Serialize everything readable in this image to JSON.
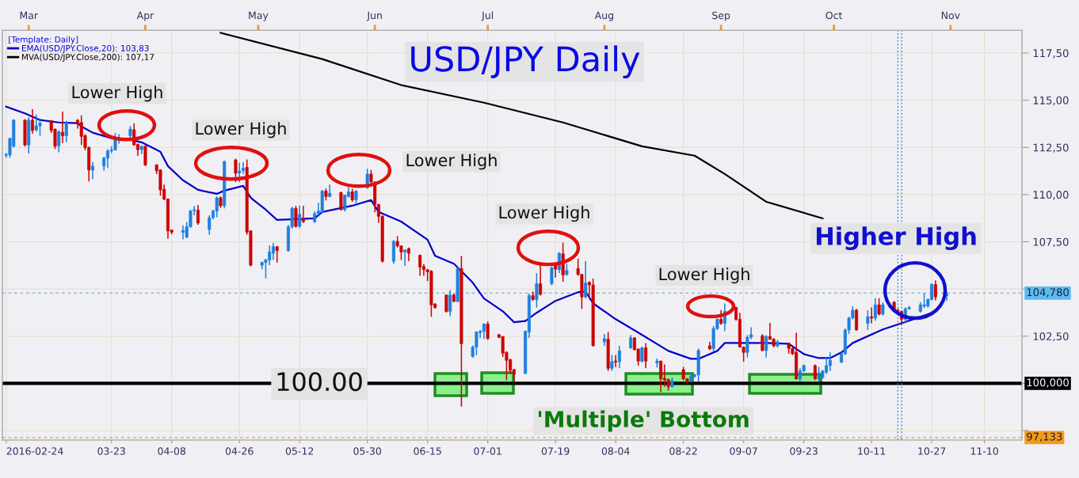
{
  "chart_data": {
    "type": "candlestick",
    "title": "USD/JPY Daily",
    "legend_title": "[Template: Daily]",
    "legend": "top left",
    "grid": true,
    "x": [
      "2016-02-24",
      "2016-02-25",
      "2016-02-26",
      "2016-02-29",
      "2016-03-01",
      "2016-03-02",
      "2016-03-03",
      "2016-03-04",
      "2016-03-07",
      "2016-03-08",
      "2016-03-09",
      "2016-03-10",
      "2016-03-11",
      "2016-03-14",
      "2016-03-15",
      "2016-03-16",
      "2016-03-17",
      "2016-03-18",
      "2016-03-21",
      "2016-03-22",
      "2016-03-23",
      "2016-03-24",
      "2016-03-25",
      "2016-03-28",
      "2016-03-29",
      "2016-03-30",
      "2016-03-31",
      "2016-04-01",
      "2016-04-04",
      "2016-04-05",
      "2016-04-06",
      "2016-04-07",
      "2016-04-08",
      "2016-04-11",
      "2016-04-12",
      "2016-04-13",
      "2016-04-14",
      "2016-04-15",
      "2016-04-18",
      "2016-04-19",
      "2016-04-20",
      "2016-04-21",
      "2016-04-22",
      "2016-04-25",
      "2016-04-26",
      "2016-04-27",
      "2016-04-28",
      "2016-04-29",
      "2016-05-02",
      "2016-05-03",
      "2016-05-04",
      "2016-05-05",
      "2016-05-06",
      "2016-05-09",
      "2016-05-10",
      "2016-05-11",
      "2016-05-12",
      "2016-05-13",
      "2016-05-16",
      "2016-05-17",
      "2016-05-18",
      "2016-05-19",
      "2016-05-20",
      "2016-05-23",
      "2016-05-24",
      "2016-05-25",
      "2016-05-26",
      "2016-05-27",
      "2016-05-30",
      "2016-05-31",
      "2016-06-01",
      "2016-06-02",
      "2016-06-03",
      "2016-06-06",
      "2016-06-07",
      "2016-06-08",
      "2016-06-09",
      "2016-06-10",
      "2016-06-13",
      "2016-06-14",
      "2016-06-15",
      "2016-06-16",
      "2016-06-17",
      "2016-06-20",
      "2016-06-21",
      "2016-06-22",
      "2016-06-23",
      "2016-06-24",
      "2016-06-27",
      "2016-06-28",
      "2016-06-29",
      "2016-06-30",
      "2016-07-01",
      "2016-07-04",
      "2016-07-05",
      "2016-07-06",
      "2016-07-07",
      "2016-07-08",
      "2016-07-11",
      "2016-07-12",
      "2016-07-13",
      "2016-07-14",
      "2016-07-15",
      "2016-07-18",
      "2016-07-19",
      "2016-07-20",
      "2016-07-21",
      "2016-07-22",
      "2016-07-25",
      "2016-07-26",
      "2016-07-27",
      "2016-07-28",
      "2016-07-29",
      "2016-08-01",
      "2016-08-02",
      "2016-08-03",
      "2016-08-04",
      "2016-08-05",
      "2016-08-08",
      "2016-08-09",
      "2016-08-10",
      "2016-08-11",
      "2016-08-12",
      "2016-08-15",
      "2016-08-16",
      "2016-08-17",
      "2016-08-18",
      "2016-08-19",
      "2016-08-22",
      "2016-08-23",
      "2016-08-24",
      "2016-08-25",
      "2016-08-26",
      "2016-08-29",
      "2016-08-30",
      "2016-08-31",
      "2016-09-01",
      "2016-09-02",
      "2016-09-05",
      "2016-09-06",
      "2016-09-07",
      "2016-09-08",
      "2016-09-09",
      "2016-09-12",
      "2016-09-13",
      "2016-09-14",
      "2016-09-15",
      "2016-09-16",
      "2016-09-19",
      "2016-09-20",
      "2016-09-21",
      "2016-09-22",
      "2016-09-23",
      "2016-09-26",
      "2016-09-27",
      "2016-09-28",
      "2016-09-29",
      "2016-09-30",
      "2016-10-03",
      "2016-10-04",
      "2016-10-05",
      "2016-10-06",
      "2016-10-07",
      "2016-10-10",
      "2016-10-11",
      "2016-10-12",
      "2016-10-13",
      "2016-10-14",
      "2016-10-17",
      "2016-10-18",
      "2016-10-19",
      "2016-10-20",
      "2016-10-21",
      "2016-10-24",
      "2016-10-25",
      "2016-10-26",
      "2016-10-27",
      "2016-10-28",
      "2016-10-31"
    ],
    "series": [
      {
        "ohlc": [
          [
            112.08,
            112.2,
            111.95,
            112.13
          ],
          [
            112.1,
            113.0,
            111.95,
            112.98
          ],
          [
            112.56,
            114.0,
            112.5,
            113.94
          ],
          [
            113.94,
            114.0,
            112.55,
            112.63
          ],
          [
            112.63,
            114.1,
            112.18,
            113.96
          ],
          [
            113.94,
            114.52,
            113.22,
            113.4
          ],
          [
            113.43,
            114.24,
            113.33,
            113.64
          ],
          [
            113.64,
            114.03,
            113.12,
            113.78
          ],
          [
            113.92,
            113.95,
            113.26,
            113.4
          ],
          [
            113.47,
            113.5,
            112.42,
            112.56
          ],
          [
            112.59,
            113.4,
            112.24,
            113.33
          ],
          [
            113.3,
            114.4,
            112.73,
            113.12
          ],
          [
            113.12,
            113.92,
            112.77,
            113.82
          ],
          [
            113.94,
            114.0,
            113.5,
            113.76
          ],
          [
            113.82,
            114.2,
            112.63,
            113.08
          ],
          [
            113.12,
            113.2,
            112.35,
            112.49
          ],
          [
            112.49,
            112.55,
            110.7,
            111.3
          ],
          [
            111.3,
            111.72,
            110.81,
            111.51
          ],
          [
            111.51,
            112.0,
            111.26,
            111.93
          ],
          [
            111.93,
            112.42,
            111.4,
            112.31
          ],
          [
            112.31,
            112.56,
            112.2,
            112.36
          ],
          [
            112.36,
            113.26,
            112.33,
            112.93
          ],
          [
            112.9,
            113.2,
            112.7,
            112.93
          ],
          [
            113.12,
            113.64,
            112.98,
            113.47
          ],
          [
            113.43,
            113.78,
            112.6,
            112.63
          ],
          [
            112.66,
            112.7,
            112.05,
            112.38
          ],
          [
            112.38,
            112.6,
            112.14,
            112.55
          ],
          [
            112.56,
            112.6,
            111.5,
            111.58
          ],
          [
            111.58,
            111.6,
            111.09,
            111.26
          ],
          [
            111.3,
            111.35,
            109.94,
            110.25
          ],
          [
            110.28,
            110.53,
            109.7,
            109.76
          ],
          [
            109.76,
            109.8,
            107.66,
            108.08
          ],
          [
            108.12,
            108.15,
            107.9,
            108.01
          ],
          [
            108.0,
            108.37,
            107.63,
            108.1
          ],
          [
            107.74,
            108.55,
            107.7,
            108.3
          ],
          [
            108.3,
            109.2,
            108.25,
            109.13
          ],
          [
            109.15,
            109.4,
            108.9,
            109.2
          ],
          [
            109.17,
            109.45,
            108.4,
            108.5
          ],
          [
            108.15,
            108.9,
            107.87,
            108.78
          ],
          [
            108.78,
            109.2,
            108.7,
            109.13
          ],
          [
            109.13,
            109.9,
            108.8,
            109.83
          ],
          [
            109.83,
            109.9,
            109.3,
            109.41
          ],
          [
            109.41,
            111.8,
            109.27,
            111.75
          ],
          [
            111.83,
            111.9,
            110.67,
            111.13
          ],
          [
            111.15,
            111.68,
            110.67,
            111.25
          ],
          [
            111.27,
            111.72,
            111.1,
            111.4
          ],
          [
            111.44,
            111.86,
            107.87,
            108.01
          ],
          [
            108.08,
            108.1,
            106.2,
            106.26
          ],
          [
            106.26,
            106.45,
            106.05,
            106.4
          ],
          [
            106.4,
            106.6,
            105.56,
            106.54
          ],
          [
            106.54,
            107.31,
            106.26,
            106.96
          ],
          [
            106.89,
            107.45,
            106.54,
            107.24
          ],
          [
            107.24,
            107.28,
            106.4,
            107.03
          ],
          [
            107.03,
            108.4,
            106.98,
            108.29
          ],
          [
            108.29,
            109.35,
            108.2,
            109.27
          ],
          [
            109.27,
            109.4,
            108.25,
            108.32
          ],
          [
            108.32,
            109.41,
            108.22,
            108.96
          ],
          [
            108.71,
            109.41,
            108.5,
            108.57
          ],
          [
            108.57,
            109.1,
            108.5,
            108.99
          ],
          [
            108.99,
            109.58,
            108.9,
            109.13
          ],
          [
            109.06,
            110.25,
            109.0,
            110.18
          ],
          [
            110.18,
            110.32,
            109.69,
            109.9
          ],
          [
            109.9,
            110.53,
            109.86,
            110.07
          ],
          [
            110.11,
            110.15,
            109.15,
            109.2
          ],
          [
            109.2,
            110.0,
            109.1,
            109.97
          ],
          [
            109.9,
            110.39,
            109.85,
            110.14
          ],
          [
            110.14,
            110.32,
            109.62,
            109.72
          ],
          [
            109.72,
            110.25,
            109.48,
            110.18
          ],
          [
            110.36,
            111.37,
            110.32,
            111.09
          ],
          [
            111.09,
            111.3,
            110.46,
            110.67
          ],
          [
            110.67,
            110.7,
            109.06,
            109.48
          ],
          [
            109.48,
            109.5,
            108.5,
            108.85
          ],
          [
            108.85,
            108.9,
            106.4,
            106.47
          ],
          [
            106.47,
            107.6,
            106.33,
            107.52
          ],
          [
            107.52,
            107.8,
            107.2,
            107.28
          ],
          [
            107.28,
            107.3,
            106.54,
            106.96
          ],
          [
            106.96,
            107.1,
            106.22,
            107.06
          ],
          [
            107.14,
            107.2,
            106.47,
            106.89
          ],
          [
            106.78,
            106.82,
            105.7,
            106.16
          ],
          [
            106.19,
            106.33,
            105.7,
            106.02
          ],
          [
            106.02,
            106.05,
            105.42,
            105.91
          ],
          [
            105.94,
            106.0,
            103.53,
            104.16
          ],
          [
            104.2,
            104.25,
            103.95,
            104.02
          ],
          [
            104.68,
            104.7,
            103.75,
            103.81
          ],
          [
            103.81,
            104.93,
            103.56,
            104.68
          ],
          [
            104.68,
            104.75,
            104.3,
            104.34
          ],
          [
            104.34,
            106.15,
            104.3,
            106.08
          ],
          [
            106.08,
            106.75,
            98.77,
            102.1
          ],
          [
            101.43,
            102.0,
            101.36,
            101.92
          ],
          [
            101.92,
            102.76,
            101.5,
            102.72
          ],
          [
            102.69,
            102.83,
            102.4,
            102.76
          ],
          [
            102.76,
            103.18,
            102.34,
            103.14
          ],
          [
            103.14,
            103.28,
            102.3,
            102.38
          ],
          [
            102.58,
            102.62,
            102.4,
            102.44
          ],
          [
            102.48,
            102.5,
            101.4,
            101.6
          ],
          [
            101.64,
            101.7,
            100.17,
            101.22
          ],
          [
            101.26,
            101.3,
            100.5,
            100.7
          ],
          [
            100.73,
            100.76,
            100.1,
            100.48
          ],
          [
            100.52,
            102.8,
            100.5,
            102.76
          ],
          [
            102.72,
            104.76,
            102.41,
            104.65
          ],
          [
            104.65,
            104.86,
            104.37,
            104.44
          ],
          [
            104.44,
            105.84,
            104.02,
            105.28
          ],
          [
            105.28,
            106.26,
            104.65,
            104.72
          ],
          [
            105.28,
            106.2,
            105.2,
            106.12
          ],
          [
            106.26,
            106.3,
            105.6,
            106.05
          ],
          [
            106.02,
            106.96,
            105.84,
            106.89
          ],
          [
            106.86,
            107.45,
            105.38,
            105.74
          ],
          [
            105.77,
            106.33,
            105.7,
            105.98
          ],
          [
            106.08,
            106.61,
            105.7,
            105.77
          ],
          [
            105.77,
            105.8,
            103.95,
            104.58
          ],
          [
            104.58,
            106.47,
            104.5,
            105.32
          ],
          [
            105.35,
            105.4,
            104.44,
            105.21
          ],
          [
            105.21,
            105.56,
            101.95,
            101.99
          ],
          [
            102.2,
            102.62,
            101.99,
            102.37
          ],
          [
            102.34,
            102.72,
            100.66,
            100.8
          ],
          [
            100.8,
            101.5,
            100.66,
            101.15
          ],
          [
            101.18,
            101.5,
            100.87,
            101.12
          ],
          [
            101.15,
            101.99,
            100.8,
            101.71
          ],
          [
            101.88,
            102.55,
            101.83,
            102.41
          ],
          [
            102.41,
            102.45,
            101.75,
            101.78
          ],
          [
            101.82,
            101.85,
            100.94,
            101.18
          ],
          [
            101.18,
            101.95,
            101.1,
            101.88
          ],
          [
            101.88,
            102.13,
            100.8,
            101.18
          ],
          [
            101.08,
            101.32,
            100.84,
            101.18
          ],
          [
            101.18,
            101.2,
            99.54,
            100.24
          ],
          [
            100.27,
            101.0,
            99.82,
            100.17
          ],
          [
            100.2,
            100.25,
            99.61,
            99.82
          ],
          [
            99.82,
            100.31,
            99.8,
            100.14
          ],
          [
            100.73,
            100.87,
            100.17,
            100.24
          ],
          [
            100.24,
            100.28,
            100.0,
            100.1
          ],
          [
            100.1,
            100.52,
            100.05,
            100.38
          ],
          [
            100.38,
            100.5,
            100.3,
            100.45
          ],
          [
            100.45,
            101.85,
            100.1,
            101.74
          ],
          [
            101.99,
            102.2,
            101.78,
            101.82
          ],
          [
            101.85,
            103.04,
            101.7,
            102.9
          ],
          [
            102.9,
            103.45,
            102.83,
            103.39
          ],
          [
            103.39,
            103.88,
            103.1,
            103.18
          ],
          [
            103.18,
            104.23,
            102.76,
            103.81
          ],
          [
            104.02,
            104.05,
            103.32,
            103.39
          ],
          [
            103.39,
            103.74,
            101.9,
            101.92
          ],
          [
            101.92,
            101.95,
            101.15,
            101.64
          ],
          [
            101.64,
            102.55,
            101.37,
            102.44
          ],
          [
            102.44,
            102.97,
            102.34,
            102.58
          ],
          [
            102.52,
            102.6,
            101.7,
            101.74
          ],
          [
            101.74,
            102.55,
            101.37,
            102.48
          ],
          [
            102.48,
            103.2,
            102.3,
            102.34
          ],
          [
            102.34,
            102.4,
            101.9,
            101.99
          ],
          [
            101.99,
            102.3,
            101.9,
            102.2
          ],
          [
            102.13,
            102.15,
            101.57,
            101.85
          ],
          [
            101.85,
            101.9,
            101.5,
            101.57
          ],
          [
            101.64,
            102.69,
            100.2,
            100.24
          ],
          [
            100.24,
            100.8,
            100.1,
            100.66
          ],
          [
            100.66,
            101.0,
            100.6,
            100.94
          ],
          [
            100.94,
            101.0,
            100.17,
            100.24
          ],
          [
            100.24,
            100.87,
            100.1,
            100.38
          ],
          [
            100.31,
            100.7,
            100.24,
            100.66
          ],
          [
            100.59,
            101.36,
            100.5,
            100.94
          ],
          [
            100.94,
            101.64,
            100.66,
            101.22
          ],
          [
            101.12,
            101.64,
            101.08,
            101.57
          ],
          [
            101.57,
            102.9,
            101.5,
            102.83
          ],
          [
            102.83,
            103.53,
            102.62,
            103.46
          ],
          [
            103.46,
            104.09,
            103.39,
            103.88
          ],
          [
            103.88,
            103.95,
            102.8,
            102.83
          ],
          [
            103.18,
            103.88,
            102.83,
            103.53
          ],
          [
            103.53,
            104.02,
            103.18,
            103.46
          ],
          [
            103.46,
            104.51,
            103.32,
            104.16
          ],
          [
            104.16,
            104.51,
            103.6,
            103.67
          ],
          [
            103.67,
            104.3,
            103.6,
            104.16
          ],
          [
            104.3,
            104.35,
            103.75,
            103.81
          ],
          [
            103.88,
            103.95,
            103.7,
            103.81
          ],
          [
            103.81,
            103.85,
            103.11,
            103.39
          ],
          [
            103.39,
            104.02,
            103.18,
            103.95
          ],
          [
            103.95,
            104.1,
            103.9,
            104.02
          ],
          [
            103.81,
            104.3,
            103.75,
            104.16
          ],
          [
            104.09,
            104.79,
            104.0,
            104.16
          ],
          [
            104.09,
            104.5,
            104.02,
            104.44
          ],
          [
            104.44,
            105.3,
            104.4,
            105.24
          ],
          [
            105.24,
            105.46,
            104.4,
            104.58
          ],
          [
            104.65,
            104.86,
            104.37,
            104.72
          ]
        ],
        "colors": [
          "#1e7fe0",
          "#1e7fe0",
          "#1e7fe0",
          "#cc0000",
          "#1e7fe0",
          "#cc0000",
          "#1e7fe0",
          "#1e7fe0",
          "#cc0000",
          "#cc0000",
          "#1e7fe0",
          "#cc0000",
          "#1e7fe0",
          "#cc0000",
          "#cc0000",
          "#cc0000",
          "#cc0000",
          "#1e7fe0",
          "#1e7fe0",
          "#1e7fe0",
          "#1e7fe0",
          "#1e7fe0",
          "#1e7fe0",
          "#1e7fe0",
          "#cc0000",
          "#cc0000",
          "#1e7fe0",
          "#cc0000",
          "#cc0000",
          "#cc0000",
          "#cc0000",
          "#cc0000",
          "#cc0000",
          "#1e7fe0",
          "#1e7fe0",
          "#1e7fe0",
          "#1e7fe0",
          "#cc0000",
          "#1e7fe0",
          "#1e7fe0",
          "#1e7fe0",
          "#cc0000",
          "#1e7fe0",
          "#cc0000",
          "#1e7fe0",
          "#1e7fe0",
          "#cc0000",
          "#cc0000",
          "#1e7fe0",
          "#1e7fe0",
          "#1e7fe0",
          "#1e7fe0",
          "#cc0000",
          "#1e7fe0",
          "#1e7fe0",
          "#cc0000",
          "#1e7fe0",
          "#cc0000",
          "#1e7fe0",
          "#1e7fe0",
          "#1e7fe0",
          "#cc0000",
          "#1e7fe0",
          "#cc0000",
          "#1e7fe0",
          "#1e7fe0",
          "#cc0000",
          "#1e7fe0",
          "#1e7fe0",
          "#cc0000",
          "#cc0000",
          "#cc0000",
          "#cc0000",
          "#1e7fe0",
          "#cc0000",
          "#cc0000",
          "#1e7fe0",
          "#cc0000",
          "#cc0000",
          "#cc0000",
          "#cc0000",
          "#cc0000",
          "#cc0000",
          "#cc0000",
          "#1e7fe0",
          "#cc0000",
          "#1e7fe0",
          "#cc0000",
          "#1e7fe0",
          "#1e7fe0",
          "#1e7fe0",
          "#1e7fe0",
          "#cc0000",
          "#cc0000",
          "#cc0000",
          "#cc0000",
          "#cc0000",
          "#cc0000",
          "#1e7fe0",
          "#1e7fe0",
          "#cc0000",
          "#1e7fe0",
          "#cc0000",
          "#1e7fe0",
          "#cc0000",
          "#1e7fe0",
          "#cc0000",
          "#1e7fe0",
          "#cc0000",
          "#cc0000",
          "#1e7fe0",
          "#cc0000",
          "#cc0000",
          "#1e7fe0",
          "#cc0000",
          "#1e7fe0",
          "#cc0000",
          "#1e7fe0",
          "#1e7fe0",
          "#cc0000",
          "#cc0000",
          "#1e7fe0",
          "#cc0000",
          "#1e7fe0",
          "#cc0000",
          "#cc0000",
          "#cc0000",
          "#1e7fe0",
          "#cc0000",
          "#cc0000",
          "#1e7fe0",
          "#1e7fe0",
          "#1e7fe0",
          "#cc0000",
          "#1e7fe0",
          "#1e7fe0",
          "#cc0000",
          "#1e7fe0",
          "#cc0000",
          "#cc0000",
          "#cc0000",
          "#1e7fe0",
          "#1e7fe0",
          "#cc0000",
          "#1e7fe0",
          "#cc0000",
          "#cc0000",
          "#1e7fe0",
          "#cc0000",
          "#cc0000",
          "#cc0000",
          "#1e7fe0",
          "#1e7fe0",
          "#cc0000",
          "#1e7fe0",
          "#1e7fe0",
          "#1e7fe0",
          "#1e7fe0",
          "#1e7fe0",
          "#1e7fe0",
          "#1e7fe0",
          "#1e7fe0",
          "#cc0000",
          "#1e7fe0",
          "#cc0000",
          "#1e7fe0",
          "#cc0000",
          "#1e7fe0",
          "#cc0000",
          "#cc0000",
          "#cc0000",
          "#1e7fe0",
          "#1e7fe0",
          "#1e7fe0",
          "#1e7fe0",
          "#1e7fe0",
          "#1e7fe0",
          "#cc0000",
          "#1e7fe0"
        ]
      },
      {
        "type": "line",
        "name": "EMA(USD/JPY.Close,20): 103,83",
        "color": "#0000cc",
        "x": [
          "2016-02-24",
          "2016-02-29",
          "2016-03-04",
          "2016-03-09",
          "2016-03-14",
          "2016-03-15",
          "2016-03-18",
          "2016-03-23",
          "2016-03-28",
          "2016-03-31",
          "2016-04-05",
          "2016-04-07",
          "2016-04-11",
          "2016-04-15",
          "2016-04-20",
          "2016-04-22",
          "2016-04-27",
          "2016-04-29",
          "2016-05-03",
          "2016-05-06",
          "2016-05-16",
          "2016-05-18",
          "2016-05-26",
          "2016-05-31",
          "2016-06-02",
          "2016-06-08",
          "2016-06-15",
          "2016-06-17",
          "2016-06-22",
          "2016-06-27",
          "2016-06-30",
          "2016-07-05",
          "2016-07-08",
          "2016-07-11",
          "2016-07-14",
          "2016-07-19",
          "2016-07-25",
          "2016-07-27",
          "2016-07-29",
          "2016-08-04",
          "2016-08-10",
          "2016-08-18",
          "2016-08-24",
          "2016-08-26",
          "2016-08-31",
          "2016-09-02",
          "2016-09-13",
          "2016-09-19",
          "2016-09-23",
          "2016-09-27",
          "2016-09-30",
          "2016-10-03",
          "2016-10-06",
          "2016-10-14",
          "2016-10-21",
          "2016-10-26",
          "2016-10-28"
        ],
        "values": [
          114.66,
          114.3,
          113.95,
          113.82,
          113.78,
          113.61,
          113.28,
          112.98,
          112.9,
          112.77,
          112.27,
          111.51,
          110.76,
          110.25,
          110.04,
          110.21,
          110.46,
          109.83,
          109.2,
          108.66,
          108.74,
          109.08,
          109.41,
          109.71,
          109.08,
          108.57,
          107.61,
          106.76,
          106.34,
          105.34,
          104.5,
          103.82,
          103.24,
          103.3,
          103.74,
          104.37,
          104.83,
          104.87,
          104.24,
          103.4,
          102.69,
          101.72,
          101.3,
          101.3,
          101.72,
          102.14,
          102.14,
          102.1,
          101.55,
          101.34,
          101.34,
          101.64,
          102.14,
          102.86,
          103.32,
          103.66,
          103.8
        ]
      },
      {
        "type": "line",
        "name": "MVA(USD/JPY.Close,200): 107,17",
        "color": "#000000",
        "x": [
          "2016-04-21",
          "2016-05-18",
          "2016-06-08",
          "2016-06-30",
          "2016-07-21",
          "2016-08-11",
          "2016-08-25",
          "2016-09-02",
          "2016-09-13",
          "2016-09-28"
        ],
        "values": [
          118.57,
          117.18,
          115.8,
          114.87,
          113.82,
          112.56,
          112.06,
          111.09,
          109.62,
          108.74
        ]
      }
    ],
    "xlim": [
      "2016-02-23",
      "2016-11-20"
    ],
    "xticks": [
      {
        "value": "2016-02-24",
        "label": "2016-02-24"
      },
      {
        "value": "2016-03-23",
        "label": "03-23"
      },
      {
        "value": "2016-04-08",
        "label": "04-08"
      },
      {
        "value": "2016-04-26",
        "label": "04-26"
      },
      {
        "value": "2016-05-12",
        "label": "05-12"
      },
      {
        "value": "2016-05-30",
        "label": "05-30"
      },
      {
        "value": "2016-06-15",
        "label": "06-15"
      },
      {
        "value": "2016-07-01",
        "label": "07-01"
      },
      {
        "value": "2016-07-19",
        "label": "07-19"
      },
      {
        "value": "2016-08-04",
        "label": "08-04"
      },
      {
        "value": "2016-08-22",
        "label": "08-22"
      },
      {
        "value": "2016-09-07",
        "label": "09-07"
      },
      {
        "value": "2016-09-23",
        "label": "09-23"
      },
      {
        "value": "2016-10-11",
        "label": "10-11"
      },
      {
        "value": "2016-10-27",
        "label": "10-27"
      },
      {
        "value": "2016-11-10",
        "label": "11-10"
      }
    ],
    "x2lim": [
      "2016-02-23",
      "2016-11-20"
    ],
    "x2ticks": [
      {
        "value": "2016-03-01",
        "label": "Mar"
      },
      {
        "value": "2016-04-01",
        "label": "Apr"
      },
      {
        "value": "2016-05-01",
        "label": "May"
      },
      {
        "value": "2016-06-01",
        "label": "Jun"
      },
      {
        "value": "2016-07-01",
        "label": "Jul"
      },
      {
        "value": "2016-08-01",
        "label": "Aug"
      },
      {
        "value": "2016-09-01",
        "label": "Sep"
      },
      {
        "value": "2016-10-01",
        "label": "Oct"
      },
      {
        "value": "2016-11-01",
        "label": "Nov"
      }
    ],
    "ylim": [
      97.0,
      118.7
    ],
    "yticks": [
      {
        "value": 97.5,
        "label": null
      },
      {
        "value": 100,
        "label": null
      },
      {
        "value": 102.5,
        "label": "102,50"
      },
      {
        "value": 105,
        "label": null
      },
      {
        "value": 107.5,
        "label": "107,50"
      },
      {
        "value": 110,
        "label": "110,00"
      },
      {
        "value": 112.5,
        "label": "112,50"
      },
      {
        "value": 115,
        "label": "115,00"
      },
      {
        "value": 117.5,
        "label": "117,50"
      }
    ],
    "ref_lines": [
      {
        "axis": "y",
        "value": 100,
        "label": "100,000",
        "color": "#000000",
        "line_style": "solid"
      },
      {
        "axis": "y",
        "value": 104.78,
        "label": "104,780",
        "color": "#5bbcf0",
        "line_style": "dashed"
      },
      {
        "axis": "y",
        "value": 97.133,
        "label": "97,133",
        "color": "#f29a1a",
        "line_style": "dashed"
      },
      {
        "axis": "x",
        "value": "2016-10-18",
        "color": "#3377cc",
        "line_style": "dotted"
      },
      {
        "axis": "x",
        "value": "2016-10-19",
        "color": "#3377cc",
        "line_style": "dotted"
      }
    ],
    "annotations": [
      "Lower High",
      "Lower High",
      "Lower High",
      "Lower High",
      "Lower High",
      "Higher High",
      "100.00",
      "'Multiple' Bottom"
    ]
  }
}
